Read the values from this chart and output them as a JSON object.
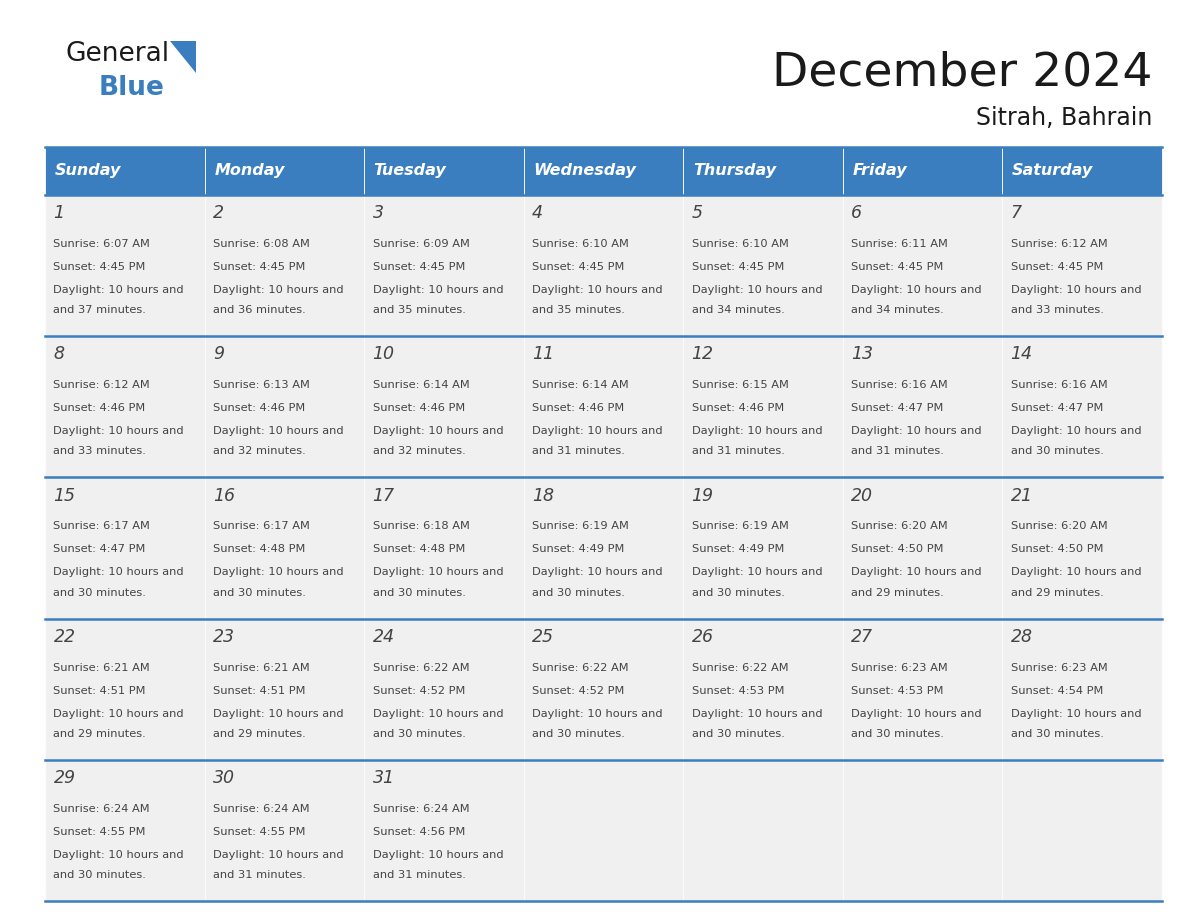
{
  "title": "December 2024",
  "subtitle": "Sitrah, Bahrain",
  "days_of_week": [
    "Sunday",
    "Monday",
    "Tuesday",
    "Wednesday",
    "Thursday",
    "Friday",
    "Saturday"
  ],
  "header_bg": "#3a7ebf",
  "header_text_color": "#ffffff",
  "cell_bg": "#f0f0f0",
  "border_color": "#3a7ebf",
  "text_color": "#444444",
  "title_color": "#1a1a1a",
  "weeks": [
    [
      {
        "day": 1,
        "sunrise": "6:07 AM",
        "sunset": "4:45 PM",
        "daylight": "10 hours and 37 minutes"
      },
      {
        "day": 2,
        "sunrise": "6:08 AM",
        "sunset": "4:45 PM",
        "daylight": "10 hours and 36 minutes"
      },
      {
        "day": 3,
        "sunrise": "6:09 AM",
        "sunset": "4:45 PM",
        "daylight": "10 hours and 35 minutes"
      },
      {
        "day": 4,
        "sunrise": "6:10 AM",
        "sunset": "4:45 PM",
        "daylight": "10 hours and 35 minutes"
      },
      {
        "day": 5,
        "sunrise": "6:10 AM",
        "sunset": "4:45 PM",
        "daylight": "10 hours and 34 minutes"
      },
      {
        "day": 6,
        "sunrise": "6:11 AM",
        "sunset": "4:45 PM",
        "daylight": "10 hours and 34 minutes"
      },
      {
        "day": 7,
        "sunrise": "6:12 AM",
        "sunset": "4:45 PM",
        "daylight": "10 hours and 33 minutes"
      }
    ],
    [
      {
        "day": 8,
        "sunrise": "6:12 AM",
        "sunset": "4:46 PM",
        "daylight": "10 hours and 33 minutes"
      },
      {
        "day": 9,
        "sunrise": "6:13 AM",
        "sunset": "4:46 PM",
        "daylight": "10 hours and 32 minutes"
      },
      {
        "day": 10,
        "sunrise": "6:14 AM",
        "sunset": "4:46 PM",
        "daylight": "10 hours and 32 minutes"
      },
      {
        "day": 11,
        "sunrise": "6:14 AM",
        "sunset": "4:46 PM",
        "daylight": "10 hours and 31 minutes"
      },
      {
        "day": 12,
        "sunrise": "6:15 AM",
        "sunset": "4:46 PM",
        "daylight": "10 hours and 31 minutes"
      },
      {
        "day": 13,
        "sunrise": "6:16 AM",
        "sunset": "4:47 PM",
        "daylight": "10 hours and 31 minutes"
      },
      {
        "day": 14,
        "sunrise": "6:16 AM",
        "sunset": "4:47 PM",
        "daylight": "10 hours and 30 minutes"
      }
    ],
    [
      {
        "day": 15,
        "sunrise": "6:17 AM",
        "sunset": "4:47 PM",
        "daylight": "10 hours and 30 minutes"
      },
      {
        "day": 16,
        "sunrise": "6:17 AM",
        "sunset": "4:48 PM",
        "daylight": "10 hours and 30 minutes"
      },
      {
        "day": 17,
        "sunrise": "6:18 AM",
        "sunset": "4:48 PM",
        "daylight": "10 hours and 30 minutes"
      },
      {
        "day": 18,
        "sunrise": "6:19 AM",
        "sunset": "4:49 PM",
        "daylight": "10 hours and 30 minutes"
      },
      {
        "day": 19,
        "sunrise": "6:19 AM",
        "sunset": "4:49 PM",
        "daylight": "10 hours and 30 minutes"
      },
      {
        "day": 20,
        "sunrise": "6:20 AM",
        "sunset": "4:50 PM",
        "daylight": "10 hours and 29 minutes"
      },
      {
        "day": 21,
        "sunrise": "6:20 AM",
        "sunset": "4:50 PM",
        "daylight": "10 hours and 29 minutes"
      }
    ],
    [
      {
        "day": 22,
        "sunrise": "6:21 AM",
        "sunset": "4:51 PM",
        "daylight": "10 hours and 29 minutes"
      },
      {
        "day": 23,
        "sunrise": "6:21 AM",
        "sunset": "4:51 PM",
        "daylight": "10 hours and 29 minutes"
      },
      {
        "day": 24,
        "sunrise": "6:22 AM",
        "sunset": "4:52 PM",
        "daylight": "10 hours and 30 minutes"
      },
      {
        "day": 25,
        "sunrise": "6:22 AM",
        "sunset": "4:52 PM",
        "daylight": "10 hours and 30 minutes"
      },
      {
        "day": 26,
        "sunrise": "6:22 AM",
        "sunset": "4:53 PM",
        "daylight": "10 hours and 30 minutes"
      },
      {
        "day": 27,
        "sunrise": "6:23 AM",
        "sunset": "4:53 PM",
        "daylight": "10 hours and 30 minutes"
      },
      {
        "day": 28,
        "sunrise": "6:23 AM",
        "sunset": "4:54 PM",
        "daylight": "10 hours and 30 minutes"
      }
    ],
    [
      {
        "day": 29,
        "sunrise": "6:24 AM",
        "sunset": "4:55 PM",
        "daylight": "10 hours and 30 minutes"
      },
      {
        "day": 30,
        "sunrise": "6:24 AM",
        "sunset": "4:55 PM",
        "daylight": "10 hours and 31 minutes"
      },
      {
        "day": 31,
        "sunrise": "6:24 AM",
        "sunset": "4:56 PM",
        "daylight": "10 hours and 31 minutes"
      },
      null,
      null,
      null,
      null
    ]
  ]
}
